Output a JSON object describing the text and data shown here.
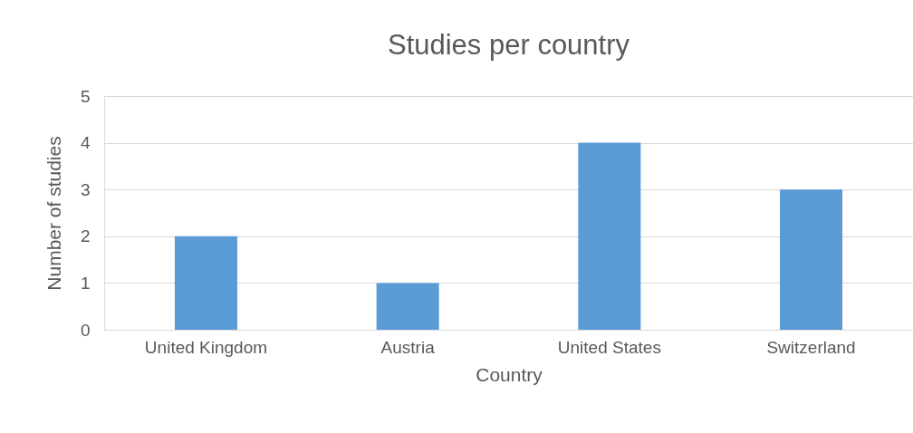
{
  "chart_data": {
    "type": "bar",
    "title": "Studies per country",
    "xlabel": "Country",
    "ylabel": "Number of studies",
    "categories": [
      "United Kingdom",
      "Austria",
      "United States",
      "Switzerland"
    ],
    "values": [
      2,
      1,
      4,
      3
    ],
    "color": "#5b9bd5",
    "ylim": [
      0,
      5
    ],
    "yticks": [
      0,
      1,
      2,
      3,
      4,
      5
    ],
    "grid": "y",
    "legend": false
  }
}
